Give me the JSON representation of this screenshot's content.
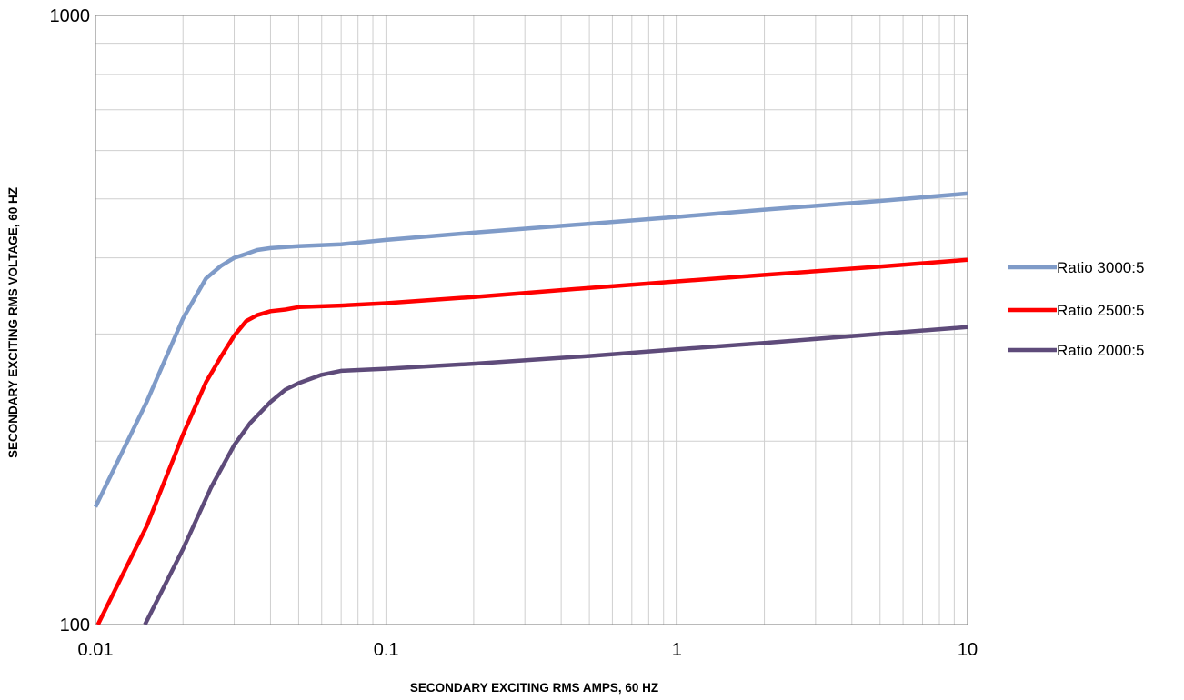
{
  "chart_data": {
    "type": "line",
    "title": "",
    "xlabel": "SECONDARY EXCITING RMS AMPS, 60 HZ",
    "ylabel": "SECONDARY EXCITING RMS VOLTAGE, 60 HZ",
    "x_scale": "log",
    "y_scale": "log",
    "xlim": [
      0.01,
      10
    ],
    "ylim": [
      100,
      1000
    ],
    "x_ticks": [
      0.01,
      0.1,
      1,
      10
    ],
    "x_tick_labels": [
      "0.01",
      "0.1",
      "1",
      "10"
    ],
    "y_ticks": [
      100,
      1000
    ],
    "y_tick_labels": [
      "100",
      "1000"
    ],
    "grid": true,
    "legend_position": "right",
    "series": [
      {
        "name": "Ratio 3000:5",
        "color": "#7f9bc8",
        "points": [
          [
            0.01,
            156
          ],
          [
            0.015,
            232
          ],
          [
            0.02,
            318
          ],
          [
            0.024,
            370
          ],
          [
            0.027,
            388
          ],
          [
            0.03,
            400
          ],
          [
            0.033,
            406
          ],
          [
            0.036,
            412
          ],
          [
            0.04,
            415
          ],
          [
            0.05,
            418
          ],
          [
            0.07,
            421
          ],
          [
            0.1,
            428
          ],
          [
            0.2,
            440
          ],
          [
            0.5,
            455
          ],
          [
            1,
            467
          ],
          [
            2,
            480
          ],
          [
            5,
            496
          ],
          [
            10,
            510
          ]
        ]
      },
      {
        "name": "Ratio 2500:5",
        "color": "#ff0000",
        "points": [
          [
            0.0102,
            100
          ],
          [
            0.015,
            145
          ],
          [
            0.02,
            205
          ],
          [
            0.024,
            250
          ],
          [
            0.027,
            275
          ],
          [
            0.03,
            298
          ],
          [
            0.033,
            315
          ],
          [
            0.036,
            322
          ],
          [
            0.04,
            327
          ],
          [
            0.045,
            329
          ],
          [
            0.05,
            332
          ],
          [
            0.07,
            334
          ],
          [
            0.1,
            337
          ],
          [
            0.2,
            345
          ],
          [
            0.5,
            357
          ],
          [
            1,
            366
          ],
          [
            2,
            375
          ],
          [
            5,
            387
          ],
          [
            10,
            397
          ]
        ]
      },
      {
        "name": "Ratio 2000:5",
        "color": "#5e4b7a",
        "points": [
          [
            0.0148,
            100
          ],
          [
            0.02,
            133
          ],
          [
            0.025,
            168
          ],
          [
            0.03,
            197
          ],
          [
            0.034,
            214
          ],
          [
            0.04,
            232
          ],
          [
            0.045,
            243
          ],
          [
            0.05,
            249
          ],
          [
            0.06,
            257
          ],
          [
            0.07,
            261
          ],
          [
            0.1,
            263
          ],
          [
            0.2,
            268
          ],
          [
            0.5,
            276
          ],
          [
            1,
            283
          ],
          [
            2,
            290
          ],
          [
            5,
            300
          ],
          [
            10,
            308
          ]
        ]
      }
    ]
  }
}
